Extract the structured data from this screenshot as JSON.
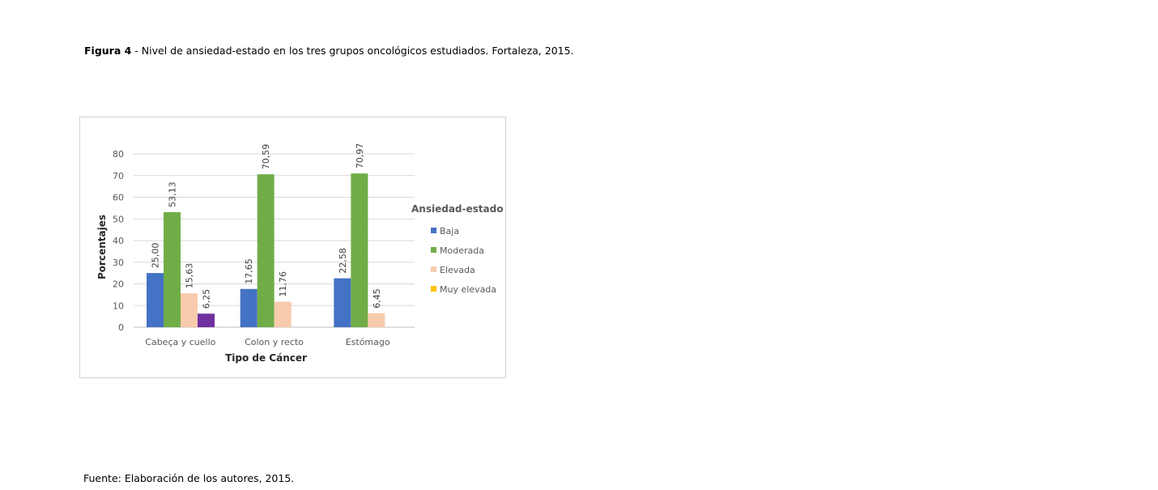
{
  "caption": {
    "label": "Figura 4",
    "text": " - Nivel de ansiedad-estado en los tres grupos oncológicos estudiados. Fortaleza, 2015."
  },
  "source": "Fuente: Elaboración de los autores, 2015.",
  "chart_data": {
    "type": "bar",
    "title": "",
    "xlabel": "Tipo de Cáncer",
    "ylabel": "Porcentajes",
    "ylim": [
      0,
      80
    ],
    "yticks": [
      0,
      10,
      20,
      30,
      40,
      50,
      60,
      70,
      80
    ],
    "grid": true,
    "categories": [
      "Cabeça y cuello",
      "Colon  y recto",
      "Estómago"
    ],
    "legend": {
      "title": "Ansiedad-estado",
      "position": "right"
    },
    "series": [
      {
        "name": "Baja",
        "color": "#4472C4",
        "values": [
          25.0,
          17.65,
          22.58
        ],
        "labels": [
          "25,00",
          "17,65",
          "22,58"
        ]
      },
      {
        "name": "Moderada",
        "color": "#70AD47",
        "values": [
          53.13,
          70.59,
          70.97
        ],
        "labels": [
          "53,13",
          "70,59",
          "70,97"
        ]
      },
      {
        "name": "Elevada",
        "color": "#F8CBAD",
        "values": [
          15.63,
          11.76,
          6.45
        ],
        "labels": [
          "15,63",
          "11,76",
          "6,45"
        ]
      },
      {
        "name": "Muy elevada",
        "color": "#7030A0",
        "legend_color": "#FFC000",
        "values": [
          6.25,
          null,
          null
        ],
        "labels": [
          "6,25",
          "",
          ""
        ]
      }
    ]
  }
}
